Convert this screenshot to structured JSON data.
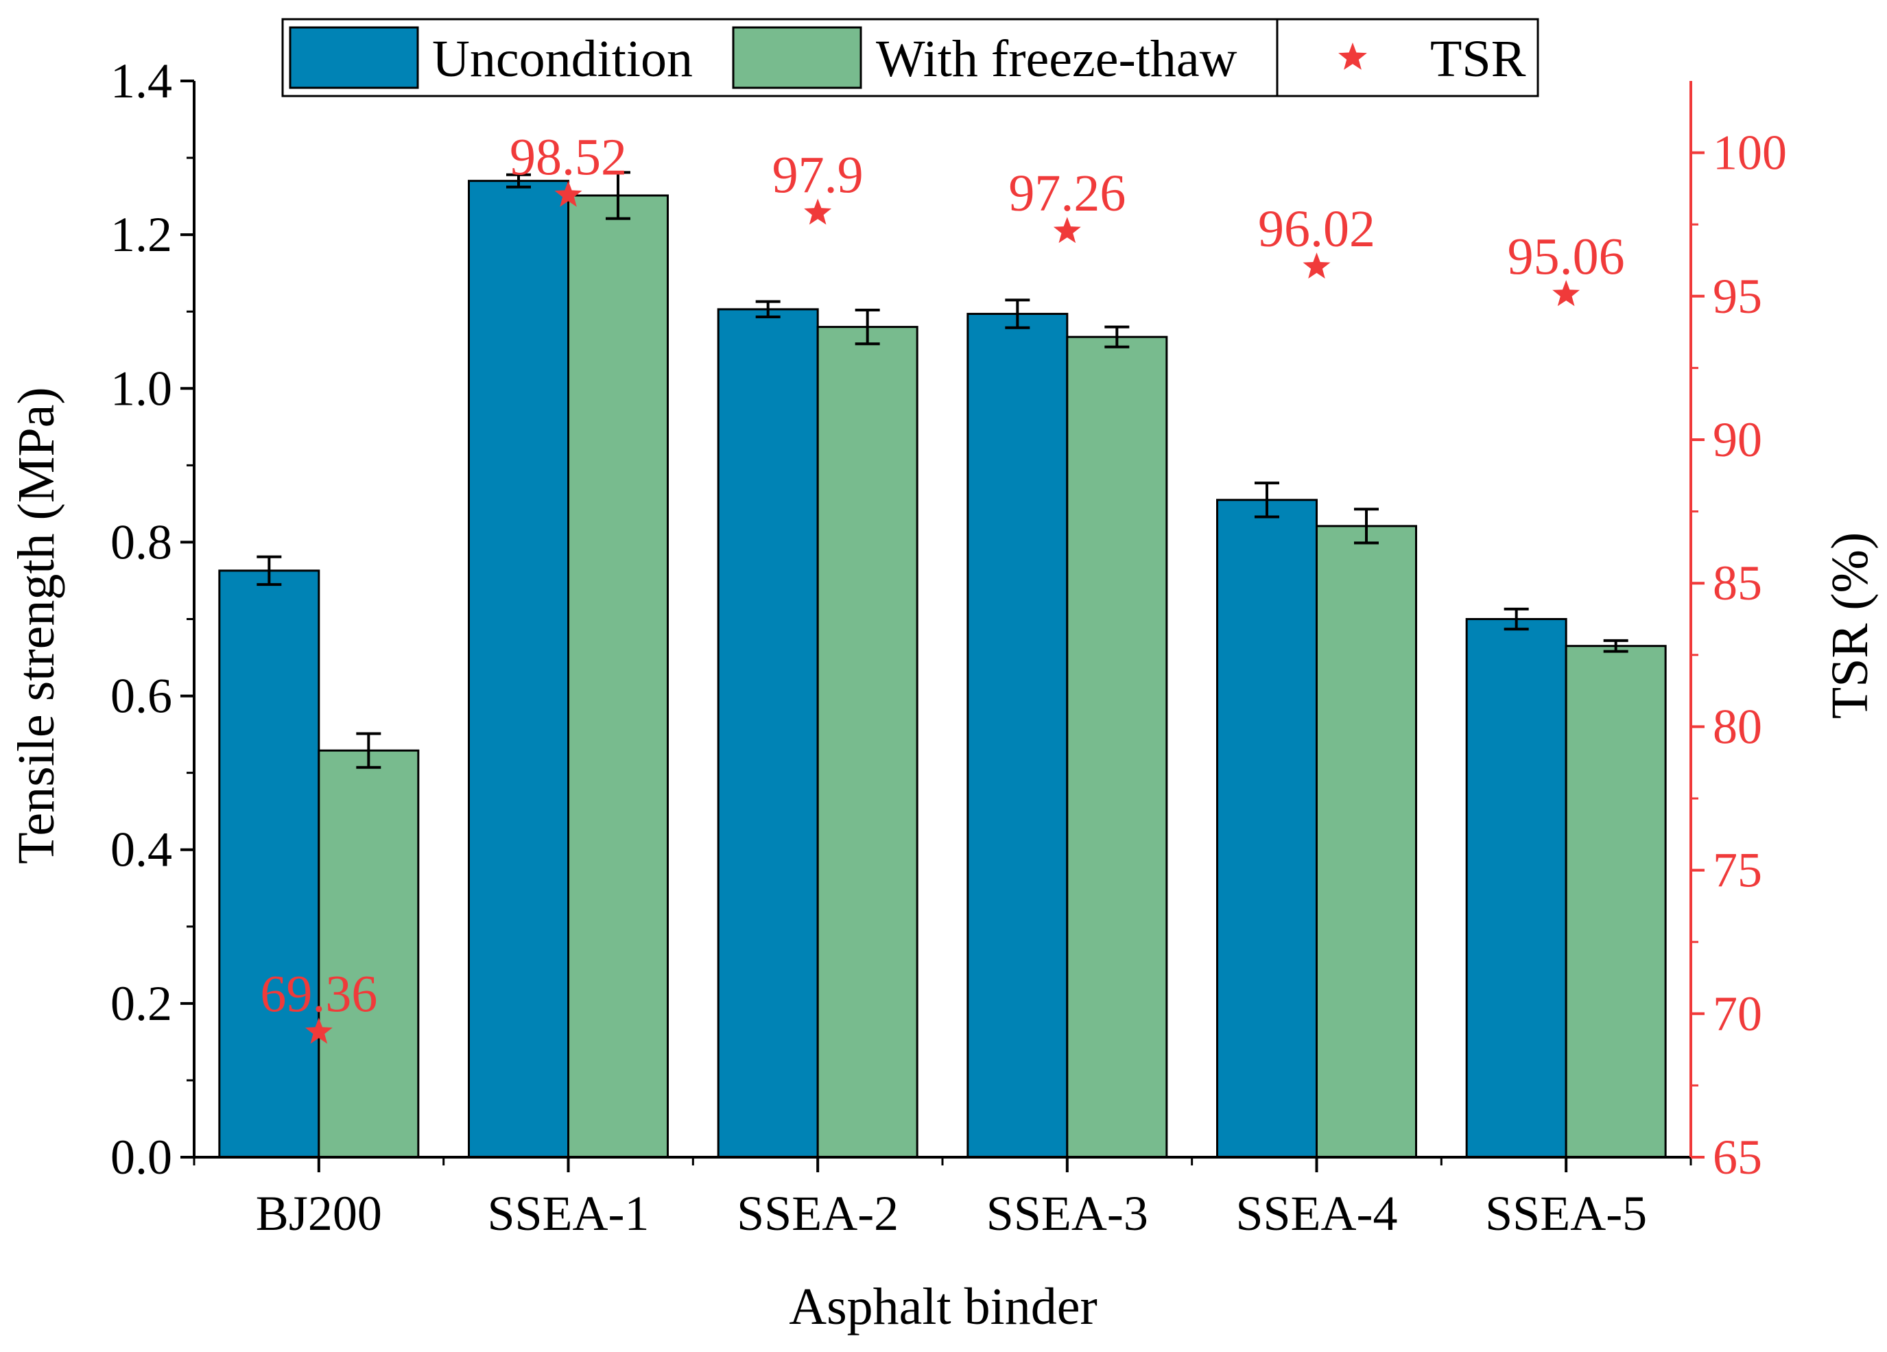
{
  "colors": {
    "uncondition": "#0083B5",
    "freeze_thaw": "#78BB8E",
    "tsr": "#F03A3A",
    "axis": "#000000",
    "right_axis": "#F03A3A"
  },
  "legend": {
    "items": [
      {
        "label": "Uncondition",
        "marker": "bar-swatch"
      },
      {
        "label": "With freeze-thaw",
        "marker": "bar-swatch"
      },
      {
        "label": "TSR",
        "marker": "star-icon"
      }
    ]
  },
  "chart_data": {
    "type": "bar",
    "title": "",
    "xlabel": "Asphalt binder",
    "ylabel": "Tensile strength (MPa)",
    "y2label": "TSR (%)",
    "categories": [
      "BJ200",
      "SSEA-1",
      "SSEA-2",
      "SSEA-3",
      "SSEA-4",
      "SSEA-5"
    ],
    "ylim": [
      0,
      1.4
    ],
    "yticks": [
      "0.0",
      "0.2",
      "0.4",
      "0.6",
      "0.8",
      "1.0",
      "1.2",
      "1.4"
    ],
    "y2lim": [
      65,
      102.5
    ],
    "y2ticks": [
      "65",
      "70",
      "75",
      "80",
      "85",
      "90",
      "95",
      "100"
    ],
    "series": [
      {
        "name": "Uncondition",
        "type": "bar",
        "values": [
          0.763,
          1.27,
          1.103,
          1.097,
          0.855,
          0.7
        ],
        "errors": [
          0.018,
          0.008,
          0.01,
          0.018,
          0.022,
          0.013
        ]
      },
      {
        "name": "With freeze-thaw",
        "type": "bar",
        "values": [
          0.529,
          1.251,
          1.08,
          1.067,
          0.821,
          0.665
        ],
        "errors": [
          0.022,
          0.03,
          0.022,
          0.013,
          0.022,
          0.007
        ]
      },
      {
        "name": "TSR",
        "type": "scatter",
        "axis": "right",
        "values": [
          69.36,
          98.52,
          97.9,
          97.26,
          96.02,
          95.06
        ],
        "labels": [
          "69.36",
          "98.52",
          "97.9",
          "97.26",
          "96.02",
          "95.06"
        ]
      }
    ],
    "legend_position": "top"
  }
}
